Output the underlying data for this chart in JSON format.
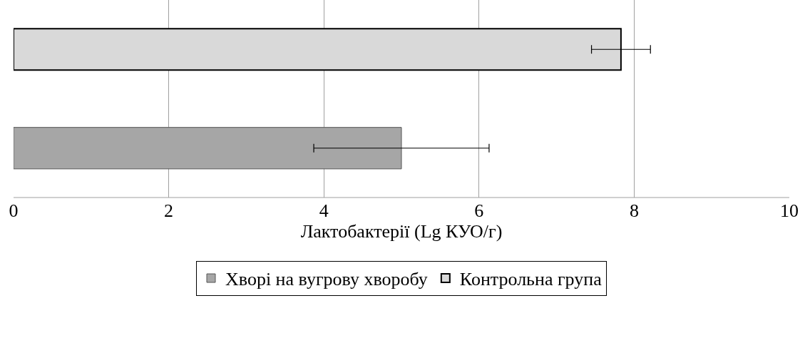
{
  "chart_data": {
    "type": "bar",
    "orientation": "horizontal",
    "xlabel": "Лактобактерії (Lg КУО/г)",
    "categories": [
      null,
      null
    ],
    "series": [
      {
        "name": "Хворі на вугрову хворобу",
        "color": "#a6a6a6",
        "values": [
          null,
          5.0
        ],
        "errors": [
          null,
          1.13
        ]
      },
      {
        "name": "Контрольна група",
        "color": "#d9d9d9",
        "values": [
          7.83,
          null
        ],
        "errors": [
          0.38,
          null
        ]
      }
    ],
    "xlim": [
      0,
      10
    ],
    "xticks": [
      0,
      2,
      4,
      6,
      8,
      10
    ],
    "grid": "x",
    "legend": "bottom"
  }
}
